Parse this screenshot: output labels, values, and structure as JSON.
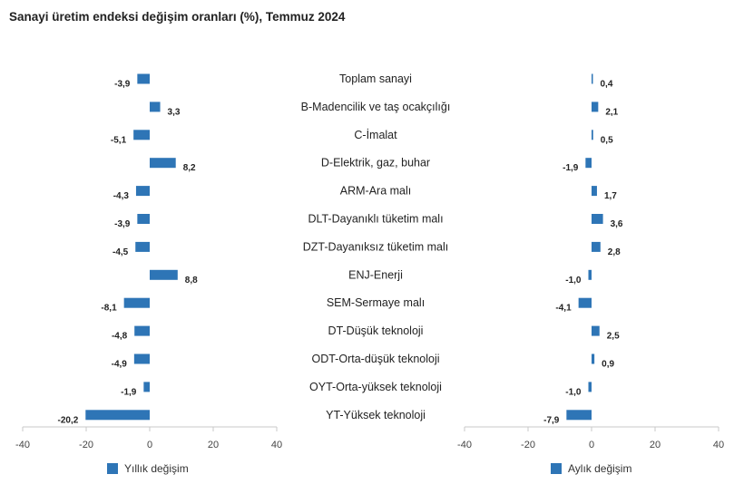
{
  "title": "Sanayi üretim endeksi değişim oranları (%), Temmuz 2024",
  "colors": {
    "bar": "#2e75b6",
    "axis": "#c8c8c8"
  },
  "legend": {
    "yillik": "Yıllık değişim",
    "aylik": "Aylık değişim"
  },
  "chart_data": [
    {
      "type": "bar",
      "orientation": "horizontal",
      "categories": [
        "Toplam sanayi",
        "B-Madencilik ve taş ocakçılığı",
        "C-İmalat",
        "D-Elektrik, gaz, buhar",
        "ARM-Ara malı",
        "DLT-Dayanıklı tüketim malı",
        "DZT-Dayanıksız tüketim malı",
        "ENJ-Enerji",
        "SEM-Sermaye malı",
        "DT-Düşük teknoloji",
        "ODT-Orta-düşük teknoloji",
        "OYT-Orta-yüksek teknoloji",
        "YT-Yüksek teknoloji"
      ],
      "series": [
        {
          "name": "Yıllık değişim",
          "values": [
            -3.9,
            3.3,
            -5.1,
            8.2,
            -4.3,
            -3.9,
            -4.5,
            8.8,
            -8.1,
            -4.8,
            -4.9,
            -1.9,
            -20.2
          ],
          "value_labels": [
            "-3,9",
            "3,3",
            "-5,1",
            "8,2",
            "-4,3",
            "-3,9",
            "-4,5",
            "8,8",
            "-8,1",
            "-4,8",
            "-4,9",
            "-1,9",
            "-20,2"
          ]
        }
      ],
      "xlim": [
        -40,
        40
      ],
      "xticks": [
        "-40",
        "-20",
        "0",
        "20",
        "40"
      ],
      "legend_position": "bottom",
      "grid": false
    },
    {
      "type": "bar",
      "orientation": "horizontal",
      "categories": [
        "Toplam sanayi",
        "B-Madencilik ve taş ocakçılığı",
        "C-İmalat",
        "D-Elektrik, gaz, buhar",
        "ARM-Ara malı",
        "DLT-Dayanıklı tüketim malı",
        "DZT-Dayanıksız tüketim malı",
        "ENJ-Enerji",
        "SEM-Sermaye malı",
        "DT-Düşük teknoloji",
        "ODT-Orta-düşük teknoloji",
        "OYT-Orta-yüksek teknoloji",
        "YT-Yüksek teknoloji"
      ],
      "series": [
        {
          "name": "Aylık değişim",
          "values": [
            0.4,
            2.1,
            0.5,
            -1.9,
            1.7,
            3.6,
            2.8,
            -1.0,
            -4.1,
            2.5,
            0.9,
            -1.0,
            -7.9
          ],
          "value_labels": [
            "0,4",
            "2,1",
            "0,5",
            "-1,9",
            "1,7",
            "3,6",
            "2,8",
            "-1,0",
            "-4,1",
            "2,5",
            "0,9",
            "-1,0",
            "-7,9"
          ]
        }
      ],
      "xlim": [
        -40,
        40
      ],
      "xticks": [
        "-40",
        "-20",
        "0",
        "20",
        "40"
      ],
      "legend_position": "bottom",
      "grid": false
    }
  ]
}
